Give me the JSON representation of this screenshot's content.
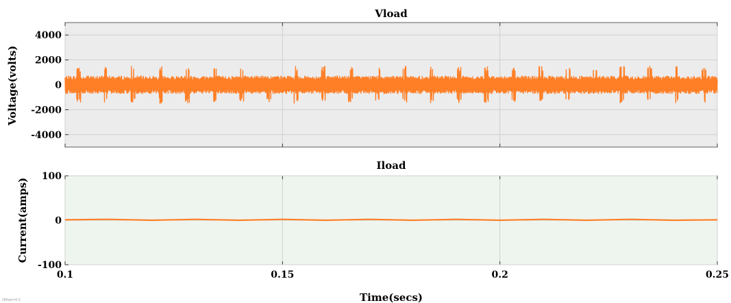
{
  "figure": {
    "offset_label": "Offset=0.5"
  },
  "chart_data": [
    {
      "type": "line",
      "title": "Vload",
      "xlabel": "",
      "ylabel": "Voltage(volts)",
      "xlim": [
        0.1,
        0.25
      ],
      "ylim": [
        -5000,
        5000
      ],
      "yticks": [
        -4000,
        -2000,
        0,
        2000,
        4000
      ],
      "xticks": [
        0.1,
        0.15,
        0.2,
        0.25
      ],
      "grid": true,
      "background": "#ececec",
      "series": [
        {
          "color": "#ff7f27",
          "waveform": {
            "description": "dense PWM-like switching, roughly 24 bursts across window",
            "burst_period": 0.00625,
            "band_amplitude": 700,
            "spike_amplitude": 1500
          }
        }
      ]
    },
    {
      "type": "line",
      "title": "Iload",
      "xlabel": "Time(secs)",
      "ylabel": "Current(amps)",
      "xlim": [
        0.1,
        0.25
      ],
      "ylim": [
        -100,
        100
      ],
      "yticks": [
        -100,
        0,
        100
      ],
      "xticks": [
        0.1,
        0.15,
        0.2,
        0.25
      ],
      "xticklabels": [
        "0.1",
        "0.15",
        "0.2",
        "0.25"
      ],
      "grid": true,
      "background": "#eef5ee",
      "series": [
        {
          "color": "#ff7f27",
          "x": [
            0.1,
            0.11,
            0.12,
            0.13,
            0.14,
            0.15,
            0.16,
            0.17,
            0.18,
            0.19,
            0.2,
            0.21,
            0.22,
            0.23,
            0.24,
            0.25
          ],
          "y": [
            1,
            2,
            0,
            2,
            0,
            2,
            0,
            2,
            0,
            2,
            0,
            2,
            0,
            2,
            0,
            1
          ]
        }
      ]
    }
  ]
}
